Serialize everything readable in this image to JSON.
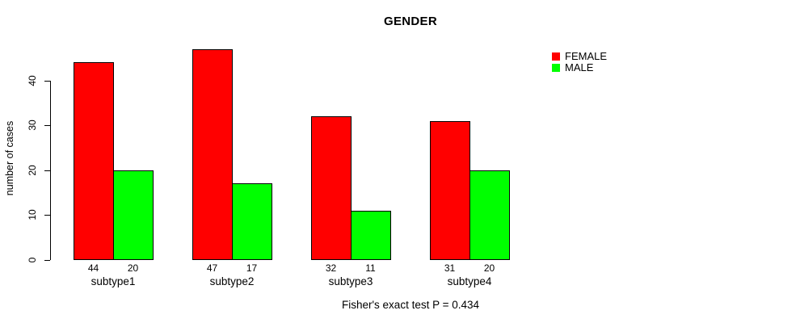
{
  "chart_data": {
    "type": "bar",
    "title": "GENDER",
    "categories": [
      "subtype1",
      "subtype2",
      "subtype3",
      "subtype4"
    ],
    "series": [
      {
        "name": "FEMALE",
        "color": "#ff0000",
        "values": [
          44,
          47,
          32,
          31
        ]
      },
      {
        "name": "MALE",
        "color": "#00ff00",
        "values": [
          20,
          17,
          11,
          20
        ]
      }
    ],
    "xlabel": "",
    "ylabel": "number of cases",
    "ylim": [
      0,
      47
    ],
    "yticks": [
      0,
      10,
      20,
      30,
      40
    ],
    "bar_value_labels": true,
    "grid": false,
    "legend_position": "top-right",
    "annotation": "Fisher's exact test P = 0.434"
  },
  "colors": {
    "female": "#ff0000",
    "male": "#00ff00",
    "axis": "#000000",
    "text": "#000000",
    "background": "#ffffff"
  }
}
